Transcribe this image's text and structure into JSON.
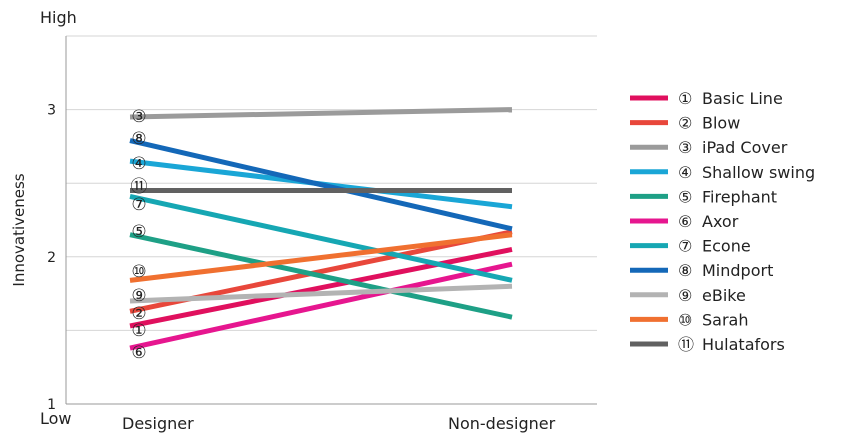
{
  "chart_data": {
    "type": "line",
    "title": "",
    "ylabel": "Innovativeness",
    "xlabel": "",
    "categories": [
      "Designer",
      "Non-designer"
    ],
    "ylim": [
      1,
      3.5
    ],
    "yticks": [
      1,
      2,
      3
    ],
    "y_top_label": "High",
    "y_bottom_label": "Low",
    "grid": true,
    "legend_position": "right",
    "series": [
      {
        "marker": "①",
        "name": "Basic Line",
        "color": "#e0105e",
        "values": [
          1.53,
          2.05
        ]
      },
      {
        "marker": "②",
        "name": "Blow",
        "color": "#e8473b",
        "values": [
          1.63,
          2.17
        ]
      },
      {
        "marker": "③",
        "name": "iPad Cover",
        "color": "#9b9b9b",
        "values": [
          2.95,
          3.0
        ]
      },
      {
        "marker": "④",
        "name": "Shallow swing",
        "color": "#1aa6d6",
        "values": [
          2.65,
          2.34
        ]
      },
      {
        "marker": "⑤",
        "name": "Firephant",
        "color": "#1ea086",
        "values": [
          2.15,
          1.59
        ]
      },
      {
        "marker": "⑥",
        "name": "Axor",
        "color": "#e6168f",
        "values": [
          1.38,
          1.95
        ]
      },
      {
        "marker": "⑦",
        "name": "Econe",
        "color": "#16a7b3",
        "values": [
          2.41,
          1.84
        ]
      },
      {
        "marker": "⑧",
        "name": "Mindport",
        "color": "#1468b8",
        "values": [
          2.79,
          2.19
        ]
      },
      {
        "marker": "⑨",
        "name": "eBike",
        "color": "#b3b3b3",
        "values": [
          1.7,
          1.8
        ]
      },
      {
        "marker": "⑩",
        "name": "Sarah",
        "color": "#f07030",
        "values": [
          1.84,
          2.15
        ]
      },
      {
        "marker": "⑪",
        "name": "Hulatafors",
        "color": "#616161",
        "values": [
          2.45,
          2.45
        ]
      }
    ]
  }
}
